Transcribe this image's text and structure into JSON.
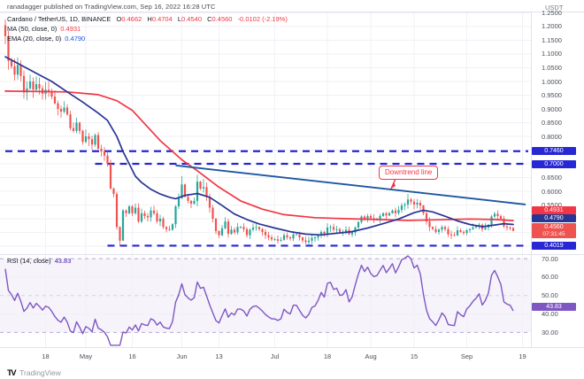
{
  "header": {
    "published_line": "ranadagger published on TradingView.com, Sep 16, 2022 16:28 UTC",
    "axis_currency": "USDT"
  },
  "legend": {
    "symbol_line": {
      "title": "Cardano / TetherUS, 1D, BINANCE",
      "change": "-0.0102 (-2.19%)"
    },
    "ohlc": [
      {
        "k": "O",
        "v": "0.4662"
      },
      {
        "k": "H",
        "v": "0.4704"
      },
      {
        "k": "L",
        "v": "0.4540"
      },
      {
        "k": "C",
        "v": "0.4560"
      }
    ],
    "ma_line": {
      "label": "MA (50, close, 0)",
      "value": "0.4931"
    },
    "ema_line": {
      "label": "EMA (20, close, 0)",
      "value": "0.4790"
    }
  },
  "rsi_legend": {
    "label": "RSI (14, close)",
    "value": "43.83"
  },
  "badges": {
    "ma": {
      "label": "MA",
      "value": "0.4931"
    },
    "ema": {
      "label": "EMA",
      "value": "0.4790"
    },
    "last": {
      "label": "ADAUSDT",
      "value": "0.4560",
      "countdown": "07:31:45"
    },
    "rsi": {
      "label": "RSI",
      "value": "43.83"
    }
  },
  "annotation": {
    "text": "Downtrend line"
  },
  "footer": {
    "logo_mark": "TV",
    "logo_text": "TradingView"
  },
  "colors": {
    "up": "#26a69a",
    "down": "#ef5350",
    "ma50": "#f23645",
    "ema20": "#283593",
    "trendline": "#1e56a0",
    "level": "#2727d4",
    "rsi": "#7e57c2",
    "rsi_band_line": "#b3a6d9",
    "rsi_mid_line": "#d8d1ec",
    "grid": "#f0f1f6",
    "axis_text": "#4a4f57",
    "border": "#e0e3eb"
  },
  "axis": {
    "price_ticks": [
      1.25,
      1.2,
      1.15,
      1.1,
      1.05,
      1.0,
      0.95,
      0.9,
      0.85,
      0.8,
      0.65,
      0.6,
      0.55
    ],
    "rsi_ticks": [
      70,
      60,
      50,
      40,
      30
    ],
    "time_labels": [
      {
        "label": "18",
        "i": 13
      },
      {
        "label": "May",
        "i": 26
      },
      {
        "label": "16",
        "i": 41
      },
      {
        "label": "Jun",
        "i": 57
      },
      {
        "label": "13",
        "i": 69
      },
      {
        "label": "Jul",
        "i": 87
      },
      {
        "label": "18",
        "i": 104
      },
      {
        "label": "Aug",
        "i": 118
      },
      {
        "label": "15",
        "i": 132
      },
      {
        "label": "Sep",
        "i": 149
      },
      {
        "label": "19",
        "i": 167
      }
    ]
  },
  "chart_data": {
    "type": "candlestick",
    "title": "Cardano / TetherUS, 1D, BINANCE",
    "symbol": "ADAUSDT",
    "interval": "1D",
    "ylim": [
      0.371,
      1.2516
    ],
    "last_ohlc": {
      "open": 0.4662,
      "high": 0.4704,
      "low": 0.454,
      "close": 0.456,
      "change": -0.0102,
      "change_pct": -2.19
    },
    "closes": [
      1.165,
      1.075,
      1.055,
      1.025,
      1.06,
      1.02,
      0.96,
      0.975,
      1.0,
      0.97,
      0.99,
      0.975,
      0.955,
      0.97,
      0.965,
      0.945,
      0.92,
      0.9,
      0.89,
      0.905,
      0.88,
      0.83,
      0.82,
      0.85,
      0.82,
      0.78,
      0.8,
      0.79,
      0.77,
      0.805,
      0.755,
      0.745,
      0.73,
      0.7,
      0.61,
      0.59,
      0.47,
      0.42,
      0.53,
      0.52,
      0.545,
      0.52,
      0.54,
      0.49,
      0.52,
      0.51,
      0.505,
      0.53,
      0.52,
      0.49,
      0.5,
      0.47,
      0.462,
      0.46,
      0.48,
      0.545,
      0.575,
      0.625,
      0.58,
      0.565,
      0.555,
      0.565,
      0.635,
      0.61,
      0.615,
      0.58,
      0.54,
      0.5,
      0.455,
      0.44,
      0.465,
      0.49,
      0.445,
      0.46,
      0.45,
      0.47,
      0.47,
      0.462,
      0.44,
      0.46,
      0.468,
      0.47,
      0.462,
      0.452,
      0.44,
      0.432,
      0.425,
      0.425,
      0.42,
      0.423,
      0.44,
      0.432,
      0.428,
      0.443,
      0.443,
      0.432,
      0.421,
      0.415,
      0.42,
      0.43,
      0.432,
      0.44,
      0.452,
      0.445,
      0.468,
      0.47,
      0.46,
      0.462,
      0.452,
      0.453,
      0.46,
      0.443,
      0.45,
      0.468,
      0.488,
      0.508,
      0.5,
      0.51,
      0.502,
      0.498,
      0.5,
      0.51,
      0.52,
      0.512,
      0.52,
      0.53,
      0.52,
      0.532,
      0.548,
      0.552,
      0.57,
      0.562,
      0.552,
      0.558,
      0.548,
      0.52,
      0.49,
      0.47,
      0.462,
      0.452,
      0.46,
      0.47,
      0.462,
      0.443,
      0.441,
      0.44,
      0.458,
      0.452,
      0.448,
      0.458,
      0.462,
      0.468,
      0.472,
      0.478,
      0.462,
      0.468,
      0.478,
      0.508,
      0.518,
      0.51,
      0.5,
      0.472,
      0.468,
      0.466,
      0.456
    ],
    "wick_overrides": {
      "0": {
        "open": 1.205
      },
      "37": {
        "low": 0.4019
      },
      "38": {
        "low": 0.432
      },
      "57": {
        "high": 0.655
      },
      "62": {
        "high": 0.66
      },
      "64": {
        "high": 0.645
      },
      "130": {
        "high": 0.59
      },
      "164": {
        "high": 0.4704,
        "low": 0.454
      }
    },
    "levels": [
      {
        "label": "0.7460",
        "price": 0.746,
        "from_i": 0
      },
      {
        "label": "0.7000",
        "price": 0.7,
        "from_i": 29
      },
      {
        "label": "0.4019",
        "price": 0.4019,
        "from_i": 33
      }
    ],
    "trendline": {
      "label": "Downtrend line",
      "from": {
        "i": 55,
        "price": 0.694
      },
      "to": {
        "i": 168,
        "price": 0.552
      }
    },
    "ma50_points": [
      [
        0,
        0.965
      ],
      [
        20,
        0.962
      ],
      [
        30,
        0.952
      ],
      [
        36,
        0.93
      ],
      [
        41,
        0.895
      ],
      [
        50,
        0.785
      ],
      [
        57,
        0.715
      ],
      [
        62,
        0.675
      ],
      [
        69,
        0.615
      ],
      [
        76,
        0.565
      ],
      [
        83,
        0.535
      ],
      [
        90,
        0.515
      ],
      [
        100,
        0.504
      ],
      [
        110,
        0.5
      ],
      [
        120,
        0.497
      ],
      [
        130,
        0.494
      ],
      [
        140,
        0.496
      ],
      [
        150,
        0.499
      ],
      [
        158,
        0.497
      ],
      [
        164,
        0.4931
      ]
    ],
    "ema20_points": [
      [
        0,
        1.09
      ],
      [
        5,
        1.06
      ],
      [
        10,
        1.03
      ],
      [
        15,
        1.0
      ],
      [
        20,
        0.962
      ],
      [
        25,
        0.925
      ],
      [
        30,
        0.885
      ],
      [
        33,
        0.858
      ],
      [
        36,
        0.8
      ],
      [
        38,
        0.745
      ],
      [
        40,
        0.7
      ],
      [
        42,
        0.655
      ],
      [
        44,
        0.632
      ],
      [
        47,
        0.607
      ],
      [
        50,
        0.59
      ],
      [
        53,
        0.578
      ],
      [
        55,
        0.573
      ],
      [
        58,
        0.585
      ],
      [
        62,
        0.592
      ],
      [
        66,
        0.578
      ],
      [
        70,
        0.548
      ],
      [
        74,
        0.517
      ],
      [
        78,
        0.497
      ],
      [
        82,
        0.481
      ],
      [
        87,
        0.466
      ],
      [
        92,
        0.453
      ],
      [
        97,
        0.444
      ],
      [
        102,
        0.441
      ],
      [
        107,
        0.447
      ],
      [
        112,
        0.453
      ],
      [
        117,
        0.466
      ],
      [
        122,
        0.482
      ],
      [
        127,
        0.499
      ],
      [
        132,
        0.522
      ],
      [
        135,
        0.531
      ],
      [
        138,
        0.525
      ],
      [
        142,
        0.509
      ],
      [
        146,
        0.492
      ],
      [
        150,
        0.479
      ],
      [
        154,
        0.471
      ],
      [
        158,
        0.477
      ],
      [
        161,
        0.482
      ],
      [
        164,
        0.479
      ]
    ],
    "rsi": {
      "period": 14,
      "last_value": 43.83,
      "ylim": [
        22,
        72
      ],
      "band": [
        30,
        70
      ],
      "mid": 50
    }
  }
}
